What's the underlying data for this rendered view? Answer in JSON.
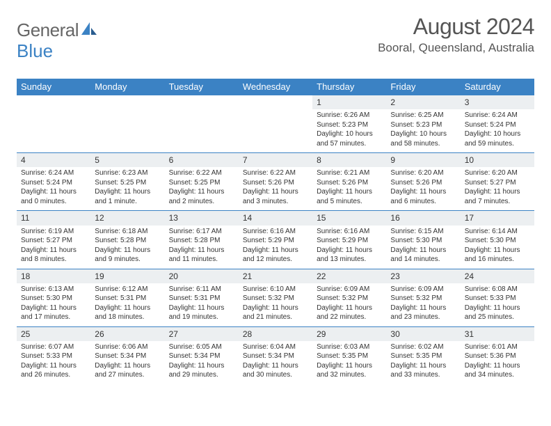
{
  "logo": {
    "text1": "General",
    "text2": "Blue"
  },
  "title": "August 2024",
  "location": "Booral, Queensland, Australia",
  "header_color": "#3b82c4",
  "daynum_bg": "#eceff1",
  "columns": [
    "Sunday",
    "Monday",
    "Tuesday",
    "Wednesday",
    "Thursday",
    "Friday",
    "Saturday"
  ],
  "weeks": [
    [
      null,
      null,
      null,
      null,
      {
        "n": "1",
        "sr": "6:26 AM",
        "ss": "5:23 PM",
        "dl": "10 hours and 57 minutes."
      },
      {
        "n": "2",
        "sr": "6:25 AM",
        "ss": "5:23 PM",
        "dl": "10 hours and 58 minutes."
      },
      {
        "n": "3",
        "sr": "6:24 AM",
        "ss": "5:24 PM",
        "dl": "10 hours and 59 minutes."
      }
    ],
    [
      {
        "n": "4",
        "sr": "6:24 AM",
        "ss": "5:24 PM",
        "dl": "11 hours and 0 minutes."
      },
      {
        "n": "5",
        "sr": "6:23 AM",
        "ss": "5:25 PM",
        "dl": "11 hours and 1 minute."
      },
      {
        "n": "6",
        "sr": "6:22 AM",
        "ss": "5:25 PM",
        "dl": "11 hours and 2 minutes."
      },
      {
        "n": "7",
        "sr": "6:22 AM",
        "ss": "5:26 PM",
        "dl": "11 hours and 3 minutes."
      },
      {
        "n": "8",
        "sr": "6:21 AM",
        "ss": "5:26 PM",
        "dl": "11 hours and 5 minutes."
      },
      {
        "n": "9",
        "sr": "6:20 AM",
        "ss": "5:26 PM",
        "dl": "11 hours and 6 minutes."
      },
      {
        "n": "10",
        "sr": "6:20 AM",
        "ss": "5:27 PM",
        "dl": "11 hours and 7 minutes."
      }
    ],
    [
      {
        "n": "11",
        "sr": "6:19 AM",
        "ss": "5:27 PM",
        "dl": "11 hours and 8 minutes."
      },
      {
        "n": "12",
        "sr": "6:18 AM",
        "ss": "5:28 PM",
        "dl": "11 hours and 9 minutes."
      },
      {
        "n": "13",
        "sr": "6:17 AM",
        "ss": "5:28 PM",
        "dl": "11 hours and 11 minutes."
      },
      {
        "n": "14",
        "sr": "6:16 AM",
        "ss": "5:29 PM",
        "dl": "11 hours and 12 minutes."
      },
      {
        "n": "15",
        "sr": "6:16 AM",
        "ss": "5:29 PM",
        "dl": "11 hours and 13 minutes."
      },
      {
        "n": "16",
        "sr": "6:15 AM",
        "ss": "5:30 PM",
        "dl": "11 hours and 14 minutes."
      },
      {
        "n": "17",
        "sr": "6:14 AM",
        "ss": "5:30 PM",
        "dl": "11 hours and 16 minutes."
      }
    ],
    [
      {
        "n": "18",
        "sr": "6:13 AM",
        "ss": "5:30 PM",
        "dl": "11 hours and 17 minutes."
      },
      {
        "n": "19",
        "sr": "6:12 AM",
        "ss": "5:31 PM",
        "dl": "11 hours and 18 minutes."
      },
      {
        "n": "20",
        "sr": "6:11 AM",
        "ss": "5:31 PM",
        "dl": "11 hours and 19 minutes."
      },
      {
        "n": "21",
        "sr": "6:10 AM",
        "ss": "5:32 PM",
        "dl": "11 hours and 21 minutes."
      },
      {
        "n": "22",
        "sr": "6:09 AM",
        "ss": "5:32 PM",
        "dl": "11 hours and 22 minutes."
      },
      {
        "n": "23",
        "sr": "6:09 AM",
        "ss": "5:32 PM",
        "dl": "11 hours and 23 minutes."
      },
      {
        "n": "24",
        "sr": "6:08 AM",
        "ss": "5:33 PM",
        "dl": "11 hours and 25 minutes."
      }
    ],
    [
      {
        "n": "25",
        "sr": "6:07 AM",
        "ss": "5:33 PM",
        "dl": "11 hours and 26 minutes."
      },
      {
        "n": "26",
        "sr": "6:06 AM",
        "ss": "5:34 PM",
        "dl": "11 hours and 27 minutes."
      },
      {
        "n": "27",
        "sr": "6:05 AM",
        "ss": "5:34 PM",
        "dl": "11 hours and 29 minutes."
      },
      {
        "n": "28",
        "sr": "6:04 AM",
        "ss": "5:34 PM",
        "dl": "11 hours and 30 minutes."
      },
      {
        "n": "29",
        "sr": "6:03 AM",
        "ss": "5:35 PM",
        "dl": "11 hours and 32 minutes."
      },
      {
        "n": "30",
        "sr": "6:02 AM",
        "ss": "5:35 PM",
        "dl": "11 hours and 33 minutes."
      },
      {
        "n": "31",
        "sr": "6:01 AM",
        "ss": "5:36 PM",
        "dl": "11 hours and 34 minutes."
      }
    ]
  ]
}
